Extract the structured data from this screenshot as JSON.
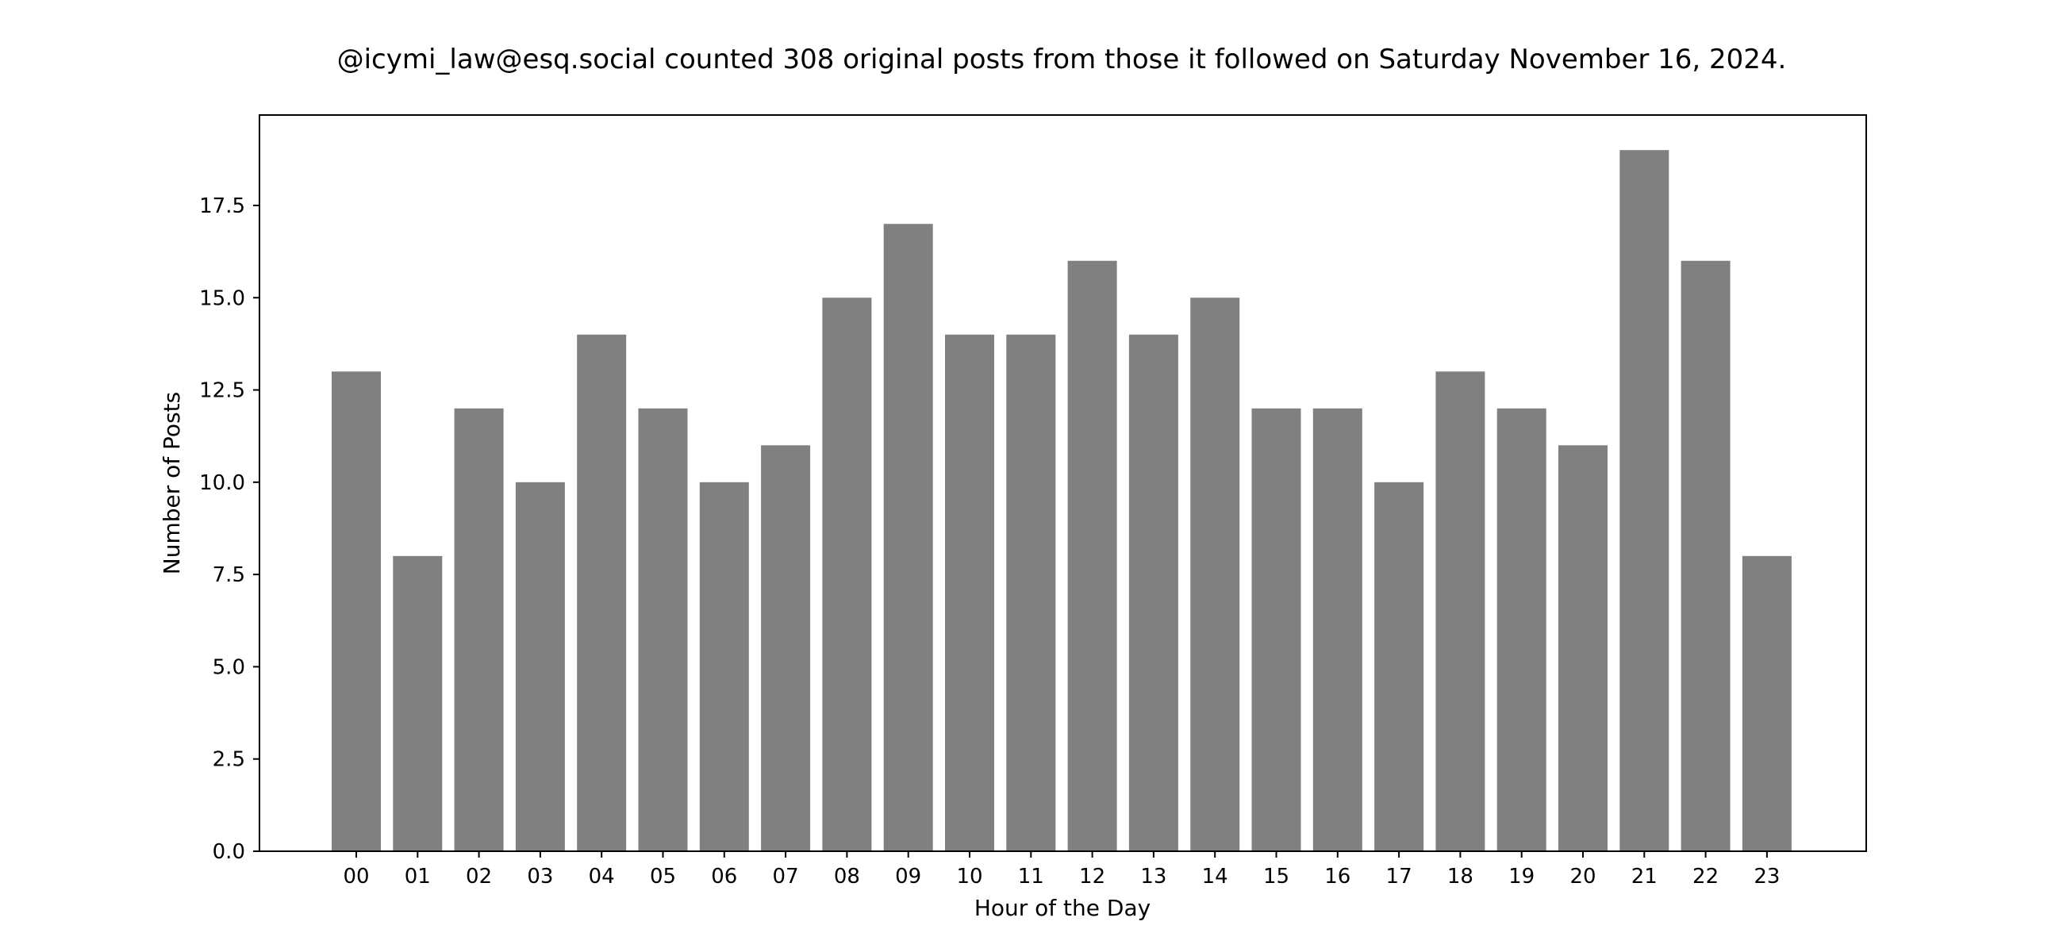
{
  "chart_data": {
    "type": "bar",
    "title": "@icymi_law@esq.social counted 308 original posts from those it followed on Saturday November 16, 2024.",
    "xlabel": "Hour of the Day",
    "ylabel": "Number of Posts",
    "categories": [
      "00",
      "01",
      "02",
      "03",
      "04",
      "05",
      "06",
      "07",
      "08",
      "09",
      "10",
      "11",
      "12",
      "13",
      "14",
      "15",
      "16",
      "17",
      "18",
      "19",
      "20",
      "21",
      "22",
      "23"
    ],
    "values": [
      13,
      8,
      12,
      10,
      14,
      12,
      10,
      11,
      15,
      17,
      14,
      14,
      16,
      14,
      15,
      12,
      12,
      10,
      13,
      12,
      11,
      19,
      16,
      8
    ],
    "yticks": [
      "0.0",
      "2.5",
      "5.0",
      "7.5",
      "10.0",
      "12.5",
      "15.0",
      "17.5"
    ],
    "ylim": [
      0,
      19.95
    ],
    "grid": false,
    "bar_color": "#808080"
  }
}
